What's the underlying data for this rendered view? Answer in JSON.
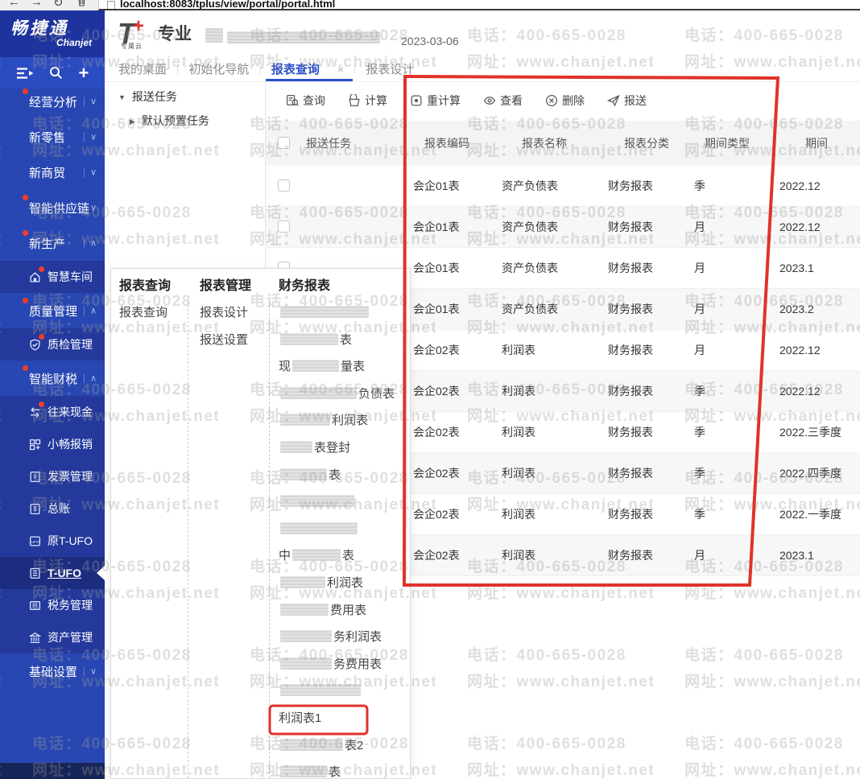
{
  "browser": {
    "url": "localhost:8083/tplus/view/portal/portal.html"
  },
  "brand": {
    "logo_cn": "畅捷通",
    "logo_en": "Chanjet"
  },
  "header": {
    "product_t": "T",
    "product_plus": "+",
    "product_cloud": "专属云",
    "edition": "专业",
    "date": "2023-03-06"
  },
  "tabs": [
    {
      "label": "我的桌面",
      "active": false,
      "closable": false
    },
    {
      "label": "初始化导航",
      "active": false,
      "closable": false
    },
    {
      "label": "报表查询",
      "active": true,
      "closable": true,
      "close_glyph": "×"
    },
    {
      "label": "报表设计",
      "active": false,
      "closable": false
    }
  ],
  "tree": {
    "root": "报送任务",
    "child": "默认预置任务"
  },
  "toolbar": [
    {
      "label": "查询",
      "icon": "query-icon"
    },
    {
      "label": "计算",
      "icon": "calculate-icon"
    },
    {
      "label": "重计算",
      "icon": "recalculate-icon"
    },
    {
      "label": "查看",
      "icon": "view-icon"
    },
    {
      "label": "删除",
      "icon": "delete-icon"
    },
    {
      "label": "报送",
      "icon": "send-icon"
    }
  ],
  "table": {
    "columns": [
      "报送任务",
      "报表编码",
      "报表名称",
      "报表分类",
      "期间类型",
      "期间"
    ],
    "rows": [
      {
        "task": "",
        "code": "会企01表",
        "name": "资产负债表",
        "category": "财务报表",
        "period_type": "季",
        "period": "2022.12"
      },
      {
        "task": "",
        "code": "会企01表",
        "name": "资产负债表",
        "category": "财务报表",
        "period_type": "月",
        "period": "2022.12"
      },
      {
        "task": "",
        "code": "会企01表",
        "name": "资产负债表",
        "category": "财务报表",
        "period_type": "月",
        "period": "2023.1"
      },
      {
        "task": "",
        "code": "会企01表",
        "name": "资产负债表",
        "category": "财务报表",
        "period_type": "月",
        "period": "2023.2"
      },
      {
        "task": "",
        "code": "会企02表",
        "name": "利润表",
        "category": "财务报表",
        "period_type": "月",
        "period": "2022.12"
      },
      {
        "task": "",
        "code": "会企02表",
        "name": "利润表",
        "category": "财务报表",
        "period_type": "季",
        "period": "2022.12"
      },
      {
        "task": "",
        "code": "会企02表",
        "name": "利润表",
        "category": "财务报表",
        "period_type": "季",
        "period": "2022.三季度"
      },
      {
        "task": "",
        "code": "会企02表",
        "name": "利润表",
        "category": "财务报表",
        "period_type": "季",
        "period": "2022.四季度"
      },
      {
        "task": "",
        "code": "会企02表",
        "name": "利润表",
        "category": "财务报表",
        "period_type": "季",
        "period": "2022.一季度"
      },
      {
        "task": "",
        "code": "会企02表",
        "name": "利润表",
        "category": "财务报表",
        "period_type": "月",
        "period": "2023.1"
      }
    ]
  },
  "sidebar": {
    "items": [
      {
        "label": "经营分析",
        "type": "top",
        "chevron": "down",
        "dot": true
      },
      {
        "label": "新零售",
        "type": "top",
        "chevron": "down",
        "dot": false
      },
      {
        "label": "新商贸",
        "type": "top",
        "chevron": "down",
        "dot": false
      },
      {
        "label": "智能供应链",
        "type": "top",
        "chevron": "down",
        "dot": true
      },
      {
        "label": "新生产",
        "type": "top",
        "chevron": "up",
        "dot": true
      },
      {
        "label": "智慧车间",
        "type": "sub",
        "icon": "workshop-icon",
        "dot": true
      },
      {
        "label": "质量管理",
        "type": "top",
        "chevron": "up",
        "dot": true
      },
      {
        "label": "质检管理",
        "type": "sub",
        "icon": "quality-shield-icon",
        "dot": true
      },
      {
        "label": "智能财税",
        "type": "top",
        "chevron": "up",
        "dot": true
      },
      {
        "label": "往来现金",
        "type": "sub",
        "icon": "cash-arrows-icon",
        "dot": true
      },
      {
        "label": "小畅报销",
        "type": "sub",
        "icon": "expense-icon",
        "dot": false
      },
      {
        "label": "发票管理",
        "type": "sub",
        "icon": "invoice-icon",
        "dot": false
      },
      {
        "label": "总账",
        "type": "sub",
        "icon": "ledger-icon",
        "dot": false
      },
      {
        "label": "原T-UFO",
        "type": "sub",
        "icon": "ufo-old-icon",
        "dot": false
      },
      {
        "label": "T-UFO",
        "type": "sub",
        "icon": "tufo-icon",
        "dot": false,
        "active": true
      },
      {
        "label": "税务管理",
        "type": "sub",
        "icon": "tax-icon",
        "dot": false
      },
      {
        "label": "资产管理",
        "type": "sub",
        "icon": "asset-icon",
        "dot": false
      },
      {
        "label": "基础设置",
        "type": "top",
        "chevron": "down",
        "dot": false
      }
    ]
  },
  "popup": {
    "columns": [
      {
        "header": "报表查询",
        "items": [
          [
            {
              "t": "报表查询"
            }
          ]
        ]
      },
      {
        "header": "报表管理",
        "items": [
          [
            {
              "t": "报表设计"
            }
          ],
          [
            {
              "t": "报送设置"
            }
          ]
        ]
      },
      {
        "header": "财务报表",
        "items": [
          [
            {
              "b": 110
            }
          ],
          [
            {
              "b": 72
            },
            {
              "t": "表"
            }
          ],
          [
            {
              "t": "现"
            },
            {
              "b": 58
            },
            {
              "t": "量表"
            }
          ],
          [
            {
              "b": 95
            },
            {
              "t": "负债表"
            }
          ],
          [
            {
              "b": 62
            },
            {
              "t": "利润表"
            }
          ],
          [
            {
              "b": 40
            },
            {
              "t": "表登封"
            }
          ],
          [
            {
              "b": 58
            },
            {
              "t": "表"
            }
          ],
          [
            {
              "b": 92
            }
          ],
          [
            {
              "b": 96
            }
          ],
          [
            {
              "t": "中"
            },
            {
              "b": 60
            },
            {
              "t": "表"
            }
          ],
          [
            {
              "b": 56
            },
            {
              "t": "利润表"
            }
          ],
          [
            {
              "b": 60
            },
            {
              "t": "费用表"
            }
          ],
          [
            {
              "b": 64
            },
            {
              "t": "务利润表"
            }
          ],
          [
            {
              "b": 64
            },
            {
              "t": "务费用表"
            }
          ],
          [
            {
              "b": 100
            }
          ],
          [
            {
              "t": "利润表1",
              "highlight": true
            }
          ],
          [
            {
              "b": 78
            },
            {
              "t": "表2"
            }
          ],
          [
            {
              "b": 58
            },
            {
              "t": "表"
            }
          ]
        ]
      }
    ]
  },
  "watermark": {
    "line1": "电话：400-665-0028",
    "line2": "网址：www.chanjet.net"
  },
  "annotations": {
    "color": "#e0322a"
  },
  "colors": {
    "sidebar_blue": "#2947b2",
    "brand_blue": "#1e339e",
    "accent_blue": "#2b50c9",
    "annotation_red": "#e0322a",
    "header_gray": "#f4f4f4"
  }
}
